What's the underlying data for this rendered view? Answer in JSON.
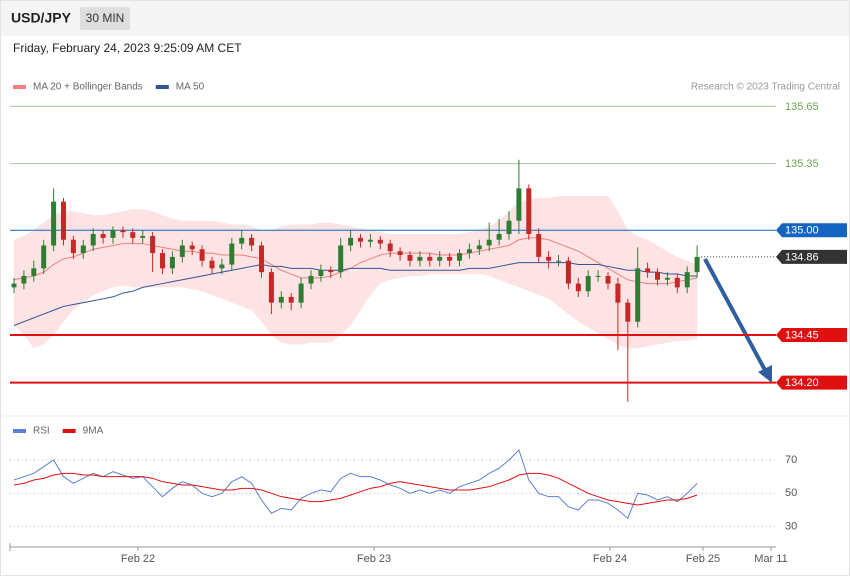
{
  "header": {
    "symbol": "USD/JPY",
    "interval": "30 MIN",
    "timestamp": "Friday, February 24, 2023 9:25:09 AM CET"
  },
  "chart_data": {
    "type": "candlestick",
    "credit": "Research © 2023 Trading Central",
    "up_color": "#2e7d32",
    "down_color": "#c62828",
    "ylim": [
      134.03,
      135.71
    ],
    "xtick_labels": [
      "Feb 22",
      "Feb 23",
      "Feb 24",
      "Feb 25",
      "Mar 11"
    ],
    "ohlc": {
      "open": [
        134.7,
        134.72,
        134.76,
        134.8,
        134.92,
        135.15,
        134.95,
        134.88,
        134.92,
        134.98,
        134.96,
        135.0,
        134.99,
        134.96,
        134.97,
        134.88,
        134.8,
        134.86,
        134.92,
        134.9,
        134.84,
        134.8,
        134.82,
        134.93,
        134.96,
        134.92,
        134.78,
        134.62,
        134.65,
        134.62,
        134.72,
        134.76,
        134.79,
        134.78,
        134.92,
        134.96,
        134.94,
        134.95,
        134.93,
        134.89,
        134.87,
        134.84,
        134.86,
        134.84,
        134.86,
        134.84,
        134.88,
        134.9,
        134.92,
        134.95,
        134.98,
        135.05,
        135.22,
        134.98,
        134.86,
        134.84,
        134.84,
        134.72,
        134.68,
        134.76,
        134.76,
        134.72,
        134.62,
        134.52,
        134.8,
        134.78,
        134.74,
        134.75,
        134.7,
        134.78
      ],
      "high": [
        134.75,
        134.79,
        134.84,
        134.95,
        135.22,
        135.17,
        134.97,
        134.95,
        135.01,
        135.0,
        135.02,
        135.02,
        135.01,
        135.0,
        134.99,
        134.9,
        134.89,
        134.95,
        134.94,
        134.92,
        134.86,
        134.85,
        134.96,
        135.0,
        134.98,
        134.94,
        134.8,
        134.68,
        134.67,
        134.75,
        134.79,
        134.82,
        134.81,
        134.96,
        135.0,
        134.98,
        134.98,
        134.97,
        134.95,
        134.91,
        134.89,
        134.89,
        134.88,
        134.89,
        134.88,
        134.9,
        134.93,
        134.95,
        135.04,
        135.06,
        135.1,
        135.37,
        135.24,
        135.01,
        134.89,
        134.87,
        134.86,
        134.75,
        134.79,
        134.79,
        134.78,
        134.75,
        134.64,
        134.91,
        134.83,
        134.8,
        134.78,
        134.77,
        134.81,
        134.92
      ],
      "low": [
        134.67,
        134.69,
        134.73,
        134.77,
        134.89,
        134.92,
        134.85,
        134.85,
        134.89,
        134.93,
        134.93,
        134.96,
        134.93,
        134.93,
        134.78,
        134.77,
        134.77,
        134.83,
        134.87,
        134.81,
        134.77,
        134.77,
        134.79,
        134.9,
        134.89,
        134.75,
        134.56,
        134.59,
        134.58,
        134.59,
        134.69,
        134.73,
        134.75,
        134.75,
        134.89,
        134.91,
        134.91,
        134.9,
        134.86,
        134.84,
        134.81,
        134.81,
        134.81,
        134.81,
        134.81,
        134.81,
        134.85,
        134.87,
        134.89,
        134.92,
        134.95,
        134.98,
        134.95,
        134.83,
        134.8,
        134.81,
        134.69,
        134.65,
        134.65,
        134.73,
        134.69,
        134.37,
        134.1,
        134.49,
        134.75,
        134.71,
        134.71,
        134.67,
        134.67,
        134.75
      ],
      "close": [
        134.72,
        134.76,
        134.8,
        134.92,
        135.15,
        134.95,
        134.88,
        134.92,
        134.98,
        134.96,
        135.0,
        134.99,
        134.96,
        134.97,
        134.88,
        134.8,
        134.86,
        134.92,
        134.9,
        134.84,
        134.8,
        134.82,
        134.93,
        134.96,
        134.92,
        134.78,
        134.62,
        134.65,
        134.62,
        134.72,
        134.76,
        134.79,
        134.78,
        134.92,
        134.96,
        134.94,
        134.95,
        134.93,
        134.89,
        134.87,
        134.84,
        134.86,
        134.84,
        134.86,
        134.84,
        134.88,
        134.9,
        134.92,
        134.95,
        134.98,
        135.05,
        135.22,
        134.98,
        134.86,
        134.84,
        134.84,
        134.72,
        134.68,
        134.76,
        134.76,
        134.72,
        134.62,
        134.52,
        134.8,
        134.78,
        134.74,
        134.75,
        134.7,
        134.78,
        134.86
      ]
    },
    "overlays": [
      {
        "name": "MA 20 + Bollinger Bands",
        "color": "#f08080",
        "band_color": "#fde3e3",
        "values": [
          134.74,
          134.75,
          134.76,
          134.78,
          134.82,
          134.85,
          134.86,
          134.88,
          134.9,
          134.91,
          134.92,
          134.93,
          134.93,
          134.93,
          134.92,
          134.91,
          134.9,
          134.89,
          134.89,
          134.88,
          134.88,
          134.87,
          134.87,
          134.87,
          134.86,
          134.85,
          134.82,
          134.79,
          134.77,
          134.75,
          134.75,
          134.75,
          134.76,
          134.78,
          134.8,
          134.83,
          134.85,
          134.87,
          134.88,
          134.88,
          134.88,
          134.88,
          134.88,
          134.87,
          134.87,
          134.87,
          134.88,
          134.89,
          134.9,
          134.91,
          134.92,
          134.95,
          134.96,
          134.96,
          134.95,
          134.93,
          134.91,
          134.89,
          134.86,
          134.83,
          134.8,
          134.77,
          134.74,
          134.73,
          134.72,
          134.72,
          134.72,
          134.73,
          134.74,
          134.75
        ],
        "upper": [
          134.95,
          134.97,
          135.0,
          135.04,
          135.08,
          135.1,
          135.1,
          135.09,
          135.08,
          135.08,
          135.09,
          135.1,
          135.11,
          135.11,
          135.1,
          135.08,
          135.06,
          135.05,
          135.05,
          135.05,
          135.05,
          135.04,
          135.03,
          135.03,
          135.02,
          135.0,
          135.0,
          135.02,
          135.03,
          135.03,
          135.03,
          135.04,
          135.04,
          135.03,
          135.02,
          135.01,
          135.0,
          134.99,
          134.98,
          134.98,
          134.98,
          134.98,
          134.98,
          134.98,
          134.98,
          134.98,
          134.99,
          135.0,
          135.02,
          135.05,
          135.1,
          135.15,
          135.16,
          135.17,
          135.17,
          135.18,
          135.18,
          135.18,
          135.18,
          135.18,
          135.18,
          135.1,
          135.0,
          134.97,
          134.95,
          134.92,
          134.89,
          134.86,
          134.84,
          134.82
        ],
        "lower": [
          134.5,
          134.45,
          134.38,
          134.4,
          134.45,
          134.52,
          134.58,
          134.62,
          134.66,
          134.68,
          134.7,
          134.71,
          134.7,
          134.7,
          134.7,
          134.7,
          134.7,
          134.7,
          134.69,
          134.68,
          134.66,
          134.64,
          134.62,
          134.6,
          134.58,
          134.52,
          134.45,
          134.41,
          134.4,
          134.4,
          134.41,
          134.41,
          134.41,
          134.45,
          134.5,
          134.58,
          134.66,
          134.72,
          134.74,
          134.75,
          134.76,
          134.76,
          134.77,
          134.77,
          134.77,
          134.77,
          134.77,
          134.77,
          134.76,
          134.74,
          134.72,
          134.7,
          134.68,
          134.66,
          134.64,
          134.6,
          134.56,
          134.52,
          134.49,
          134.46,
          134.43,
          134.4,
          134.38,
          134.38,
          134.39,
          134.4,
          134.41,
          134.42,
          134.42,
          134.43
        ]
      },
      {
        "name": "MA 50",
        "color": "#2f5597",
        "values": [
          134.5,
          134.52,
          134.54,
          134.56,
          134.58,
          134.6,
          134.61,
          134.62,
          134.63,
          134.64,
          134.65,
          134.67,
          134.68,
          134.7,
          134.71,
          134.72,
          134.73,
          134.74,
          134.75,
          134.76,
          134.77,
          134.78,
          134.79,
          134.8,
          134.81,
          134.82,
          134.81,
          134.81,
          134.8,
          134.8,
          134.8,
          134.79,
          134.79,
          134.79,
          134.8,
          134.8,
          134.8,
          134.8,
          134.79,
          134.79,
          134.79,
          134.79,
          134.79,
          134.79,
          134.79,
          134.79,
          134.8,
          134.8,
          134.8,
          134.81,
          134.82,
          134.83,
          134.83,
          134.83,
          134.83,
          134.83,
          134.83,
          134.82,
          134.82,
          134.82,
          134.81,
          134.8,
          134.79,
          134.79,
          134.78,
          134.78,
          134.77,
          134.77,
          134.76,
          134.76
        ]
      }
    ],
    "levels": [
      {
        "value": 135.65,
        "color": "#6aa84f"
      },
      {
        "value": 135.35,
        "color": "#6aa84f"
      },
      {
        "value": 135,
        "label": "135.00",
        "color": "#1565c0",
        "box": true
      },
      {
        "value": 134.86,
        "color": "#333333",
        "box": true,
        "dotted": true
      },
      {
        "value": 134.45,
        "color": "#e01010",
        "box": true,
        "thick": true
      },
      {
        "value": 134.2,
        "label": "134.20",
        "color": "#e01010",
        "box": true,
        "thick": true
      }
    ],
    "indicator": {
      "type": "line",
      "ylim": [
        22,
        82
      ],
      "yticks": [
        70,
        50,
        30
      ],
      "series": [
        {
          "name": "RSI",
          "color": "#5b7fd6",
          "values": [
            58,
            60,
            62,
            66,
            70,
            60,
            56,
            59,
            62,
            60,
            63,
            61,
            59,
            60,
            54,
            48,
            53,
            57,
            55,
            50,
            48,
            50,
            57,
            60,
            56,
            46,
            38,
            41,
            40,
            47,
            50,
            52,
            51,
            59,
            62,
            60,
            60,
            58,
            55,
            53,
            50,
            52,
            50,
            52,
            50,
            54,
            56,
            58,
            62,
            65,
            70,
            76,
            58,
            50,
            48,
            48,
            42,
            40,
            46,
            46,
            44,
            40,
            35,
            50,
            49,
            46,
            48,
            45,
            50,
            56
          ]
        },
        {
          "name": "9MA",
          "color": "#e01010",
          "values": [
            55,
            56,
            58,
            59,
            61,
            62,
            62,
            61,
            61,
            60,
            60,
            60,
            60,
            60,
            59,
            57,
            56,
            55,
            55,
            54,
            53,
            52,
            52,
            53,
            53,
            52,
            50,
            48,
            47,
            46,
            45,
            45,
            46,
            47,
            49,
            51,
            53,
            54,
            56,
            57,
            56,
            55,
            54,
            53,
            52,
            52,
            52,
            53,
            54,
            56,
            58,
            61,
            62,
            62,
            61,
            59,
            56,
            53,
            50,
            48,
            46,
            45,
            44,
            43,
            44,
            45,
            46,
            46,
            47,
            49
          ]
        }
      ]
    }
  }
}
